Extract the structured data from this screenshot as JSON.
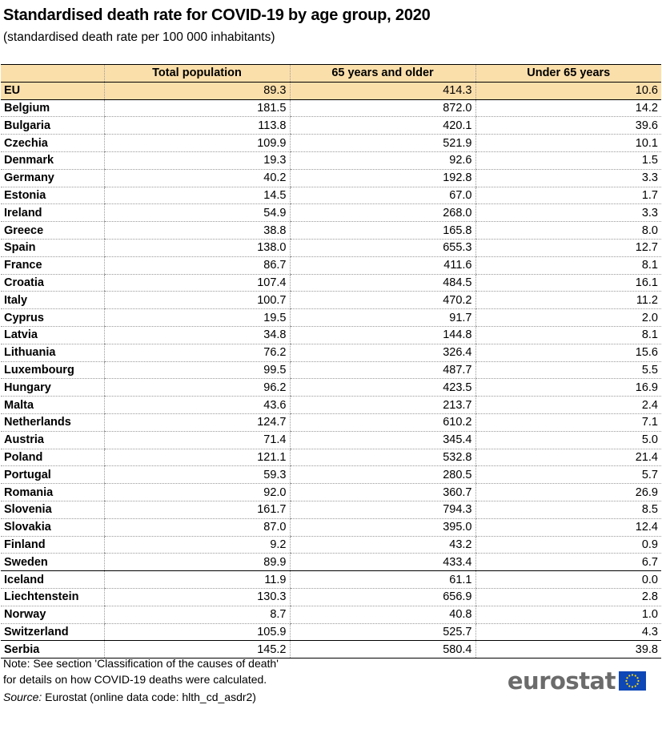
{
  "title": "Standardised death rate for COVID-19 by age group, 2020",
  "subtitle": "(standardised death rate per 100 000 inhabitants)",
  "table": {
    "headers": [
      "",
      "Total population",
      "65 years and older",
      "Under 65 years"
    ],
    "rows": [
      {
        "country": "EU",
        "total": "89.3",
        "over65": "414.3",
        "under65": "10.6"
      },
      {
        "country": "Belgium",
        "total": "181.5",
        "over65": "872.0",
        "under65": "14.2"
      },
      {
        "country": "Bulgaria",
        "total": "113.8",
        "over65": "420.1",
        "under65": "39.6"
      },
      {
        "country": "Czechia",
        "total": "109.9",
        "over65": "521.9",
        "under65": "10.1"
      },
      {
        "country": "Denmark",
        "total": "19.3",
        "over65": "92.6",
        "under65": "1.5"
      },
      {
        "country": "Germany",
        "total": "40.2",
        "over65": "192.8",
        "under65": "3.3"
      },
      {
        "country": "Estonia",
        "total": "14.5",
        "over65": "67.0",
        "under65": "1.7"
      },
      {
        "country": "Ireland",
        "total": "54.9",
        "over65": "268.0",
        "under65": "3.3"
      },
      {
        "country": "Greece",
        "total": "38.8",
        "over65": "165.8",
        "under65": "8.0"
      },
      {
        "country": "Spain",
        "total": "138.0",
        "over65": "655.3",
        "under65": "12.7"
      },
      {
        "country": "France",
        "total": "86.7",
        "over65": "411.6",
        "under65": "8.1"
      },
      {
        "country": "Croatia",
        "total": "107.4",
        "over65": "484.5",
        "under65": "16.1"
      },
      {
        "country": "Italy",
        "total": "100.7",
        "over65": "470.2",
        "under65": "11.2"
      },
      {
        "country": "Cyprus",
        "total": "19.5",
        "over65": "91.7",
        "under65": "2.0"
      },
      {
        "country": "Latvia",
        "total": "34.8",
        "over65": "144.8",
        "under65": "8.1"
      },
      {
        "country": "Lithuania",
        "total": "76.2",
        "over65": "326.4",
        "under65": "15.6"
      },
      {
        "country": "Luxembourg",
        "total": "99.5",
        "over65": "487.7",
        "under65": "5.5"
      },
      {
        "country": "Hungary",
        "total": "96.2",
        "over65": "423.5",
        "under65": "16.9"
      },
      {
        "country": "Malta",
        "total": "43.6",
        "over65": "213.7",
        "under65": "2.4"
      },
      {
        "country": "Netherlands",
        "total": "124.7",
        "over65": "610.2",
        "under65": "7.1"
      },
      {
        "country": "Austria",
        "total": "71.4",
        "over65": "345.4",
        "under65": "5.0"
      },
      {
        "country": "Poland",
        "total": "121.1",
        "over65": "532.8",
        "under65": "21.4"
      },
      {
        "country": "Portugal",
        "total": "59.3",
        "over65": "280.5",
        "under65": "5.7"
      },
      {
        "country": "Romania",
        "total": "92.0",
        "over65": "360.7",
        "under65": "26.9"
      },
      {
        "country": "Slovenia",
        "total": "161.7",
        "over65": "794.3",
        "under65": "8.5"
      },
      {
        "country": "Slovakia",
        "total": "87.0",
        "over65": "395.0",
        "under65": "12.4"
      },
      {
        "country": "Finland",
        "total": "9.2",
        "over65": "43.2",
        "under65": "0.9"
      },
      {
        "country": "Sweden",
        "total": "89.9",
        "over65": "433.4",
        "under65": "6.7"
      },
      {
        "country": "Iceland",
        "total": "11.9",
        "over65": "61.1",
        "under65": "0.0"
      },
      {
        "country": "Liechtenstein",
        "total": "130.3",
        "over65": "656.9",
        "under65": "2.8"
      },
      {
        "country": "Norway",
        "total": "8.7",
        "over65": "40.8",
        "under65": "1.0"
      },
      {
        "country": "Switzerland",
        "total": "105.9",
        "over65": "525.7",
        "under65": "4.3"
      },
      {
        "country": "Serbia",
        "total": "145.2",
        "over65": "580.4",
        "under65": "39.8"
      }
    ]
  },
  "note": {
    "line1": "Note: See section 'Classification of the causes of death'",
    "line2": "for details on how COVID-19 deaths were calculated."
  },
  "source": {
    "label": "Source:",
    "text": "Eurostat (online data code: hlth_cd_asdr2)"
  },
  "logo": {
    "text": "eurostat",
    "icon": "eu-flag-icon",
    "flag_color": "#0e47b6",
    "star_color": "#ffdd00"
  },
  "colors": {
    "header_bg": "#fbdfab"
  }
}
